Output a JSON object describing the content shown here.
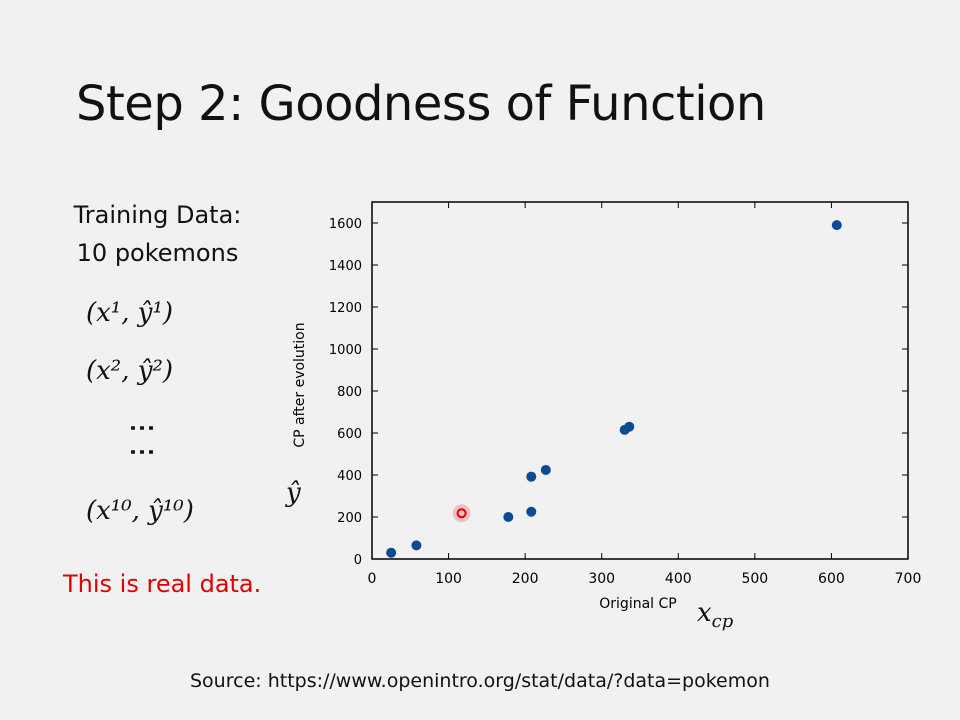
{
  "slide": {
    "title": "Step 2: Goodness of Function",
    "training_line1": "Training Data:",
    "training_line2": "10 pokemons",
    "pair1": "(x¹, ŷ¹)",
    "pair2": "(x², ŷ²)",
    "ellipsis": "⋮⋮",
    "pair10": "(x¹⁰, ŷ¹⁰)",
    "real_note": "This is real data.",
    "source": "Source: https://www.openintro.org/stat/data/?data=pokemon",
    "y_symbol": "ŷ",
    "x_symbol": "x",
    "x_symbol_sub": "cp",
    "note_color": "#e00000"
  },
  "chart_data": {
    "type": "scatter",
    "title": "",
    "xlabel": "Original CP",
    "ylabel": "CP after evolution",
    "xlim": [
      0,
      700
    ],
    "ylim": [
      0,
      1700
    ],
    "xticks": [
      0,
      100,
      200,
      300,
      400,
      500,
      600,
      700
    ],
    "yticks": [
      0,
      200,
      400,
      600,
      800,
      1000,
      1200,
      1400,
      1600
    ],
    "grid": false,
    "point_color": "#0b4a94",
    "points": [
      {
        "x": 25,
        "y": 30
      },
      {
        "x": 58,
        "y": 65
      },
      {
        "x": 178,
        "y": 200
      },
      {
        "x": 208,
        "y": 225
      },
      {
        "x": 208,
        "y": 392
      },
      {
        "x": 227,
        "y": 424
      },
      {
        "x": 330,
        "y": 615
      },
      {
        "x": 336,
        "y": 630
      },
      {
        "x": 607,
        "y": 1590
      }
    ],
    "pointer": {
      "x": 117,
      "y": 218,
      "color": "#e00000"
    }
  }
}
